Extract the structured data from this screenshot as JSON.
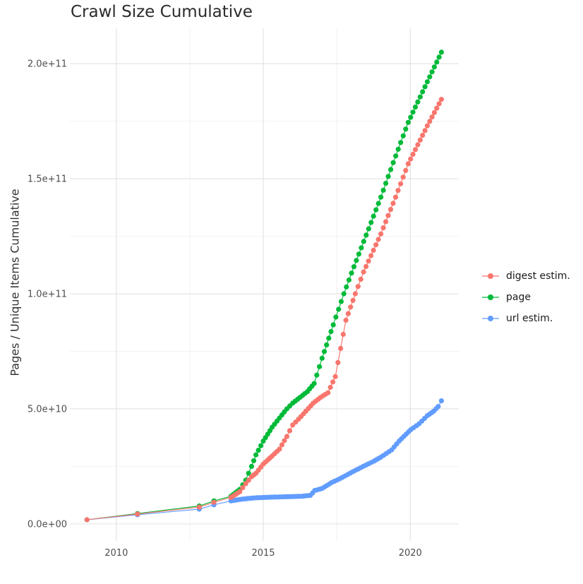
{
  "title": "Crawl Size Cumulative",
  "y_axis_title": "Pages / Unique Items Cumulative",
  "colors": {
    "digest": "#F8766D",
    "page": "#00BA38",
    "url": "#619CFF",
    "grid_major": "#E2E2E2",
    "grid_minor": "#F2F2F2",
    "axis_text": "#4D4D4D",
    "title_text": "#2b2b2b"
  },
  "legend": {
    "items": [
      {
        "id": "digest",
        "label": "digest estim."
      },
      {
        "id": "page",
        "label": "page"
      },
      {
        "id": "url",
        "label": "url estim."
      }
    ]
  },
  "chart_data": {
    "type": "scatter",
    "title": "Crawl Size Cumulative",
    "xlabel": "",
    "ylabel": "Pages / Unique Items Cumulative",
    "grid": true,
    "legend_position": "right",
    "xlim": [
      2008.42,
      2021.65
    ],
    "ylim": [
      -7400000000.0,
      215400000000.0
    ],
    "x_ticks": {
      "major": [
        2010,
        2015,
        2020
      ],
      "labels": [
        "2010",
        "2015",
        "2020"
      ],
      "minor": [
        2012.5,
        2017.5
      ]
    },
    "y_ticks": {
      "major": [
        0,
        50000000000.0,
        100000000000.0,
        150000000000.0,
        200000000000.0
      ],
      "labels": [
        "0.0e+00",
        "5.0e+10",
        "1.0e+11",
        "1.5e+11",
        "2.0e+11"
      ],
      "minor": [
        25000000000.0,
        75000000000.0,
        125000000000.0,
        175000000000.0
      ]
    },
    "dense_from_year": 2013.85,
    "dense_step_years": 0.0833,
    "series": [
      {
        "name": "page",
        "color_key": "page",
        "points": [
          [
            2009.0,
            1800000000.0
          ],
          [
            2010.72,
            4500000000.0
          ],
          [
            2012.82,
            7800000000.0
          ],
          [
            2013.32,
            10000000000.0
          ],
          [
            2013.9,
            12000000000.0
          ],
          [
            2014.2,
            15000000000.0
          ],
          [
            2014.4,
            19000000000.0
          ],
          [
            2014.6,
            25000000000.0
          ],
          [
            2014.75,
            30000000000.0
          ],
          [
            2015.0,
            36000000000.0
          ],
          [
            2015.3,
            42000000000.0
          ],
          [
            2015.55,
            46000000000.0
          ],
          [
            2015.8,
            50000000000.0
          ],
          [
            2016.0,
            52500000000.0
          ],
          [
            2016.25,
            55000000000.0
          ],
          [
            2016.5,
            57500000000.0
          ],
          [
            2016.73,
            61000000000.0
          ],
          [
            2017.0,
            72000000000.0
          ],
          [
            2017.38,
            86500000000.0
          ],
          [
            2017.74,
            100000000000.0
          ],
          [
            2018.0,
            109000000000.0
          ],
          [
            2018.5,
            125500000000.0
          ],
          [
            2019.0,
            142000000000.0
          ],
          [
            2019.42,
            157000000000.0
          ],
          [
            2019.93,
            174500000000.0
          ],
          [
            2020.5,
            190000000000.0
          ],
          [
            2021.06,
            205000000000.0
          ]
        ]
      },
      {
        "name": "url estim.",
        "color_key": "url",
        "points": [
          [
            2009.0,
            1800000000.0
          ],
          [
            2010.72,
            4000000000.0
          ],
          [
            2012.82,
            6400000000.0
          ],
          [
            2013.32,
            8300000000.0
          ],
          [
            2013.9,
            10000000000.0
          ],
          [
            2014.3,
            10800000000.0
          ],
          [
            2014.7,
            11300000000.0
          ],
          [
            2015.2,
            11600000000.0
          ],
          [
            2015.8,
            11800000000.0
          ],
          [
            2016.3,
            12000000000.0
          ],
          [
            2016.6,
            12400000000.0
          ],
          [
            2016.75,
            14500000000.0
          ],
          [
            2017.0,
            15400000000.0
          ],
          [
            2017.33,
            18000000000.0
          ],
          [
            2017.6,
            19600000000.0
          ],
          [
            2018.05,
            22700000000.0
          ],
          [
            2018.4,
            25000000000.0
          ],
          [
            2018.77,
            27300000000.0
          ],
          [
            2019.0,
            29000000000.0
          ],
          [
            2019.37,
            32200000000.0
          ],
          [
            2019.62,
            36000000000.0
          ],
          [
            2019.86,
            39000000000.0
          ],
          [
            2020.02,
            41000000000.0
          ],
          [
            2020.3,
            43500000000.0
          ],
          [
            2020.58,
            47000000000.0
          ],
          [
            2020.8,
            49000000000.0
          ],
          [
            2020.95,
            51000000000.0
          ],
          [
            2021.06,
            53500000000.0
          ]
        ]
      },
      {
        "name": "digest estim.",
        "color_key": "digest",
        "points": [
          [
            2009.0,
            1800000000.0
          ],
          [
            2010.72,
            4300000000.0
          ],
          [
            2012.82,
            7300000000.0
          ],
          [
            2013.32,
            9400000000.0
          ],
          [
            2013.9,
            11500000000.0
          ],
          [
            2014.2,
            14000000000.0
          ],
          [
            2014.4,
            17500000000.0
          ],
          [
            2014.6,
            20500000000.0
          ],
          [
            2014.75,
            22000000000.0
          ],
          [
            2015.0,
            26000000000.0
          ],
          [
            2015.3,
            29500000000.0
          ],
          [
            2015.55,
            32500000000.0
          ],
          [
            2015.8,
            38000000000.0
          ],
          [
            2016.0,
            43000000000.0
          ],
          [
            2016.2,
            45500000000.0
          ],
          [
            2016.45,
            49000000000.0
          ],
          [
            2016.7,
            52500000000.0
          ],
          [
            2016.95,
            55000000000.0
          ],
          [
            2017.2,
            57000000000.0
          ],
          [
            2017.45,
            64000000000.0
          ],
          [
            2017.81,
            88500000000.0
          ],
          [
            2018.13,
            100000000000.0
          ],
          [
            2018.41,
            109500000000.0
          ],
          [
            2019.0,
            126000000000.0
          ],
          [
            2019.5,
            142000000000.0
          ],
          [
            2019.93,
            156500000000.0
          ],
          [
            2020.58,
            173000000000.0
          ],
          [
            2021.06,
            184500000000.0
          ]
        ]
      }
    ]
  }
}
